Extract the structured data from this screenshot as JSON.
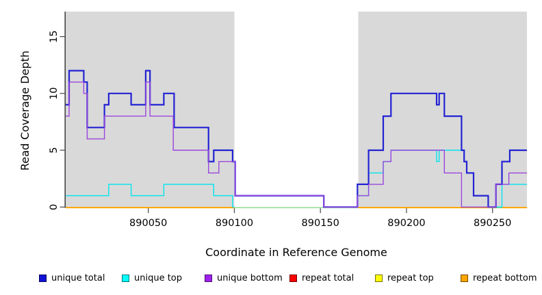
{
  "figure": {
    "kind": "read coverage step plot",
    "background_color": "#ffffff",
    "panel_color": "#d9d9d9",
    "axis_color": "#444444",
    "gap_baseline_color": "#8fdb8f"
  },
  "chart_data": {
    "type": "line",
    "subtype": "step-coverage",
    "title": "",
    "xlabel": "Coordinate in Reference Genome",
    "ylabel": "Read Coverage Depth",
    "xlim": [
      890002,
      890270
    ],
    "ylim": [
      0,
      17.2
    ],
    "grid": false,
    "xticks": [
      {
        "value": 890050,
        "label": "890050"
      },
      {
        "value": 890100,
        "label": "890100"
      },
      {
        "value": 890150,
        "label": "890150"
      },
      {
        "value": 890200,
        "label": "890200"
      },
      {
        "value": 890250,
        "label": "890250"
      }
    ],
    "yticks": [
      {
        "value": 0,
        "label": "0"
      },
      {
        "value": 5,
        "label": "5"
      },
      {
        "value": 10,
        "label": "10"
      },
      {
        "value": 15,
        "label": "15"
      }
    ],
    "shaded_regions": [
      {
        "from": 890002,
        "to": 890100
      },
      {
        "from": 890172,
        "to": 890270
      }
    ],
    "gap_region": {
      "from": 890100,
      "to": 890172
    },
    "gap_baseline_segments": [
      {
        "from": 890100,
        "to": 890172,
        "value": 0
      },
      {
        "from": 890247.5,
        "to": 890255.5,
        "value": 0
      }
    ],
    "series": [
      {
        "key": "repeat-total",
        "name": "repeat total",
        "color": "#e60000",
        "width": 1.4,
        "baseline": true,
        "value": 0,
        "segments": [
          [
            890002,
            890100
          ],
          [
            890172,
            890270
          ]
        ]
      },
      {
        "key": "repeat-top",
        "name": "repeat top",
        "color": "#ffff00",
        "width": 1.4,
        "baseline": true,
        "value": 0,
        "segments": [
          [
            890002,
            890100
          ],
          [
            890172,
            890270
          ]
        ]
      },
      {
        "key": "repeat-bottom",
        "name": "repeat bottom",
        "color": "#ffa500",
        "width": 2,
        "baseline": true,
        "value": 0,
        "segments": [
          [
            890002,
            890100
          ],
          [
            890172,
            890270
          ]
        ]
      },
      {
        "key": "unique-top",
        "name": "unique top",
        "color": "#00e4ee",
        "width": 1.4,
        "parts": [
          {
            "steps": [
              [
                890002,
                1
              ],
              [
                890027,
                2
              ],
              [
                890040,
                1
              ],
              [
                890059,
                2
              ],
              [
                890088,
                1
              ],
              [
                890099,
                0
              ]
            ],
            "end": 890100
          },
          {
            "steps": [
              [
                890171.5,
                1
              ],
              [
                890178,
                3
              ],
              [
                890186.5,
                4
              ],
              [
                890191,
                5
              ],
              [
                890217.5,
                4
              ],
              [
                890219,
                5
              ],
              [
                890233.5,
                4
              ],
              [
                890235,
                3
              ],
              [
                890239,
                1
              ],
              [
                890247.5,
                0
              ],
              [
                890255.5,
                2
              ]
            ],
            "end": 890270
          }
        ]
      },
      {
        "key": "unique-total",
        "name": "unique total",
        "color": "#2222d4",
        "width": 2.2,
        "parts": [
          {
            "steps": [
              [
                890002,
                9
              ],
              [
                890004,
                12
              ],
              [
                890012.5,
                11
              ],
              [
                890014.5,
                7
              ],
              [
                890024.5,
                9
              ],
              [
                890027,
                10
              ],
              [
                890040,
                9
              ],
              [
                890048.5,
                12
              ],
              [
                890051,
                9
              ],
              [
                890059,
                10
              ],
              [
                890065,
                7
              ],
              [
                890085,
                4
              ],
              [
                890088,
                5
              ],
              [
                890099,
                4
              ],
              [
                890100.5,
                1
              ],
              [
                890152,
                0
              ],
              [
                890171.5,
                2
              ],
              [
                890178,
                5
              ],
              [
                890186.5,
                8
              ],
              [
                890191,
                10
              ],
              [
                890217.5,
                9
              ],
              [
                890219,
                10
              ],
              [
                890222,
                8
              ],
              [
                890232,
                5
              ],
              [
                890233.5,
                4
              ],
              [
                890235,
                3
              ],
              [
                890239,
                1
              ],
              [
                890247.5,
                0
              ],
              [
                890252,
                2
              ],
              [
                890255.5,
                4
              ],
              [
                890260,
                5
              ]
            ],
            "end": 890270
          }
        ]
      },
      {
        "key": "unique-bottom",
        "name": "unique bottom",
        "color": "#9a45dd",
        "width": 1.4,
        "parts": [
          {
            "steps": [
              [
                890002,
                8
              ],
              [
                890004,
                11
              ],
              [
                890012.5,
                10
              ],
              [
                890014.5,
                6
              ],
              [
                890024.5,
                8
              ],
              [
                890048.5,
                11
              ],
              [
                890051,
                8
              ],
              [
                890064.5,
                5
              ],
              [
                890085,
                3
              ],
              [
                890091,
                4
              ],
              [
                890100.5,
                1
              ],
              [
                890152,
                0
              ],
              [
                890171.5,
                1
              ],
              [
                890178,
                2
              ],
              [
                890186.5,
                4
              ],
              [
                890191,
                5
              ],
              [
                890222,
                3
              ],
              [
                890232,
                0
              ],
              [
                890252,
                2
              ],
              [
                890259.5,
                3
              ]
            ],
            "end": 890270
          }
        ]
      }
    ]
  },
  "legend": {
    "items": [
      {
        "label": "unique total",
        "color": "#1111d6"
      },
      {
        "label": "unique top",
        "color": "#00ffff"
      },
      {
        "label": "unique bottom",
        "color": "#a020f0"
      },
      {
        "label": "repeat total",
        "color": "#ff0000"
      },
      {
        "label": "repeat top",
        "color": "#ffff00"
      },
      {
        "label": "repeat bottom",
        "color": "#ffa500"
      }
    ]
  }
}
